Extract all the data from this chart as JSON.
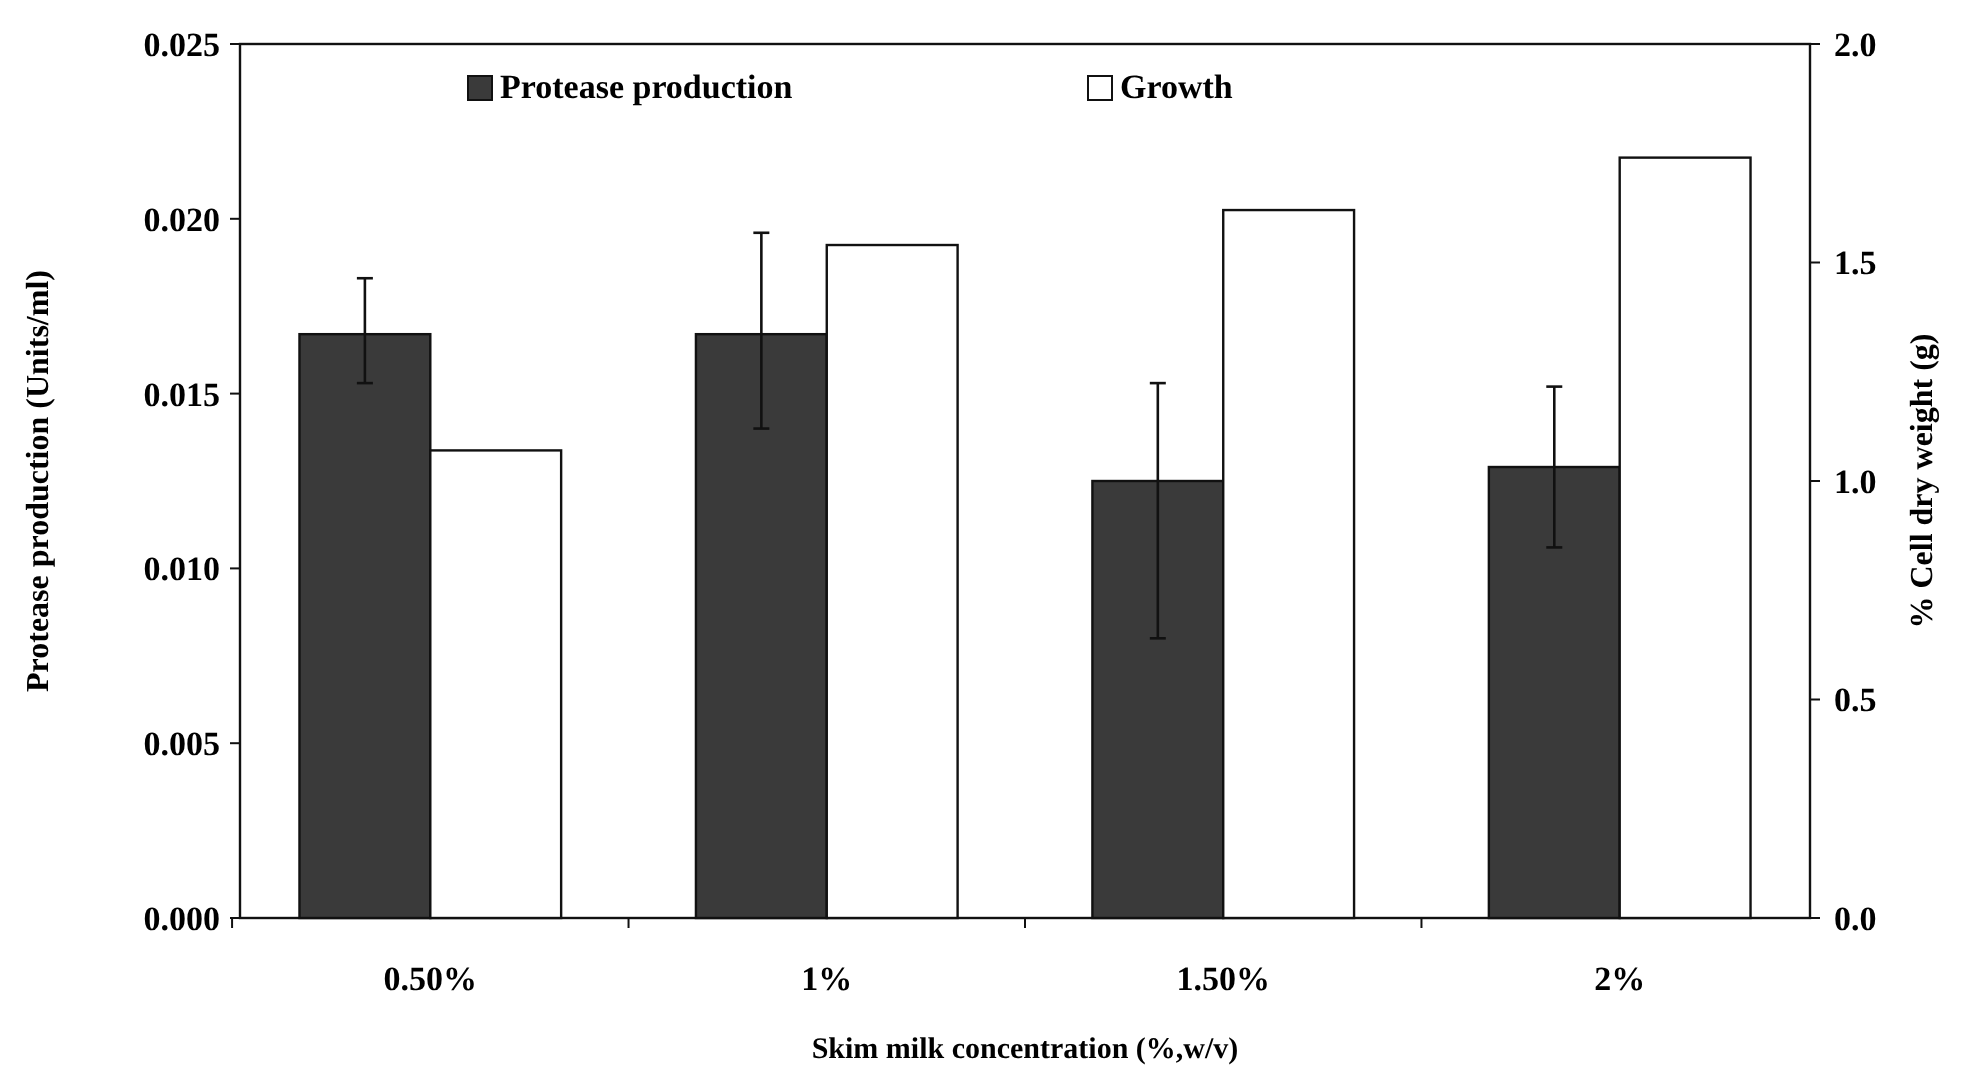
{
  "chart_data": {
    "type": "bar",
    "xlabel": "Skim milk concentration (%,w/v)",
    "ylabel": "Protease production (Units/ml)",
    "y2label": "% Cell dry weight (g)",
    "categories": [
      "0.50%",
      "1%",
      "1.50%",
      "2%"
    ],
    "series": [
      {
        "name": "Protease production",
        "color": "#3a3a3a",
        "values": [
          0.0167,
          0.0167,
          0.0125,
          0.0129
        ],
        "errors": [
          [
            0.0153,
            0.0183
          ],
          [
            0.014,
            0.0196
          ],
          [
            0.008,
            0.0153
          ],
          [
            0.0106,
            0.0152
          ]
        ]
      },
      {
        "name": "Growth",
        "color": "#ffffff",
        "axis": "y2",
        "values": [
          1.07,
          1.54,
          1.62,
          1.74
        ]
      }
    ],
    "ylim": [
      0,
      0.025
    ],
    "yticks": [
      {
        "value": 0,
        "label": "0.000"
      },
      {
        "value": 0.005,
        "label": "0.005"
      },
      {
        "value": 0.01,
        "label": "0.010"
      },
      {
        "value": 0.015,
        "label": "0.015"
      },
      {
        "value": 0.02,
        "label": "0.020"
      },
      {
        "value": 0.025,
        "label": "0.025"
      }
    ],
    "y2lim": [
      0,
      2
    ],
    "y2ticks": [
      {
        "value": 0,
        "label": "0.0"
      },
      {
        "value": 0.5,
        "label": "0.5"
      },
      {
        "value": 1,
        "label": "1.0"
      },
      {
        "value": 1.5,
        "label": "1.5"
      },
      {
        "value": 2,
        "label": "2.0"
      }
    ],
    "legend": "top",
    "grid": false
  }
}
